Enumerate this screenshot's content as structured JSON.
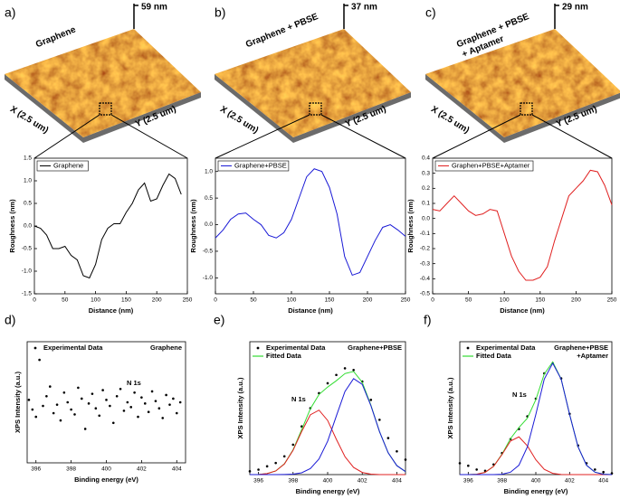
{
  "afm_panels": [
    {
      "panel": "a)",
      "height": "59 nm",
      "title": [
        "Graphene"
      ],
      "x_label": "X (2.5 um)",
      "y_label": "Y (2.5 um)"
    },
    {
      "panel": "b)",
      "height": "37 nm",
      "title": [
        "Graphene + PBSE"
      ],
      "x_label": "X (2.5 um)",
      "y_label": "Y (2.5 um)"
    },
    {
      "panel": "c)",
      "height": "29 nm",
      "title": [
        "Graphene + PBSE",
        "+ Aptamer"
      ],
      "x_label": "X (2.5 um)",
      "y_label": "Y (2.5 um)"
    }
  ],
  "chart_data": [
    {
      "type": "line",
      "x_label": "Distance (nm)",
      "y_label": "Roughness (nm)",
      "x": [
        0,
        10,
        20,
        30,
        40,
        50,
        60,
        70,
        80,
        90,
        100,
        110,
        120,
        130,
        140,
        150,
        160,
        170,
        180,
        190,
        200,
        210,
        220,
        230,
        240
      ],
      "series": [
        {
          "name": "Graphene",
          "color": "#000000",
          "values": [
            0.0,
            -0.05,
            -0.2,
            -0.5,
            -0.5,
            -0.45,
            -0.65,
            -0.75,
            -1.1,
            -1.15,
            -0.85,
            -0.3,
            -0.05,
            0.05,
            0.05,
            0.3,
            0.5,
            0.8,
            0.95,
            0.55,
            0.6,
            0.9,
            1.15,
            1.05,
            0.7
          ]
        }
      ],
      "xlim": [
        0,
        250
      ],
      "xticks": [
        0,
        50,
        100,
        150,
        200,
        250
      ],
      "ylim": [
        -1.5,
        1.5
      ],
      "yticks": [
        -1.5,
        {
          "value": -1,
          "label": "-1.0"
        },
        -0.5,
        {
          "value": 0,
          "label": "0.0"
        },
        0.5,
        {
          "value": 1,
          "label": "1.0"
        },
        1.5
      ]
    },
    {
      "type": "line",
      "x_label": "Distance (nm)",
      "y_label": "Roughness (nm)",
      "x": [
        0,
        10,
        20,
        30,
        40,
        50,
        60,
        70,
        80,
        90,
        100,
        110,
        120,
        130,
        140,
        150,
        160,
        170,
        180,
        190,
        200,
        210,
        220,
        230,
        240,
        250
      ],
      "series": [
        {
          "name": "Graphene+PBSE",
          "color": "#1a1ad6",
          "values": [
            -0.25,
            -0.1,
            0.1,
            0.2,
            0.22,
            0.1,
            0.0,
            -0.2,
            -0.25,
            -0.15,
            0.1,
            0.5,
            0.9,
            1.05,
            1.0,
            0.7,
            0.2,
            -0.6,
            -0.95,
            -0.9,
            -0.6,
            -0.3,
            -0.05,
            0.0,
            -0.1,
            -0.22
          ]
        }
      ],
      "xlim": [
        0,
        250
      ],
      "xticks": [
        0,
        50,
        100,
        150,
        200,
        250
      ],
      "ylim": [
        -1.3,
        1.25
      ],
      "yticks": [
        {
          "value": -1,
          "label": "-1.0"
        },
        -0.5,
        {
          "value": 0,
          "label": "0.0"
        },
        0.5,
        {
          "value": 1,
          "label": "1.0"
        }
      ]
    },
    {
      "type": "line",
      "x_label": "Distance (nm)",
      "y_label": "Roughness (nm)",
      "x": [
        0,
        10,
        20,
        30,
        40,
        50,
        60,
        70,
        80,
        90,
        100,
        110,
        120,
        130,
        140,
        150,
        160,
        170,
        180,
        190,
        200,
        210,
        220,
        230,
        240,
        250
      ],
      "series": [
        {
          "name": "Graphen+PBSE+Aptamer",
          "color": "#e02020",
          "values": [
            0.06,
            0.05,
            0.1,
            0.15,
            0.1,
            0.05,
            0.02,
            0.03,
            0.06,
            0.05,
            -0.1,
            -0.25,
            -0.35,
            -0.41,
            -0.41,
            -0.39,
            -0.32,
            -0.15,
            0.0,
            0.15,
            0.2,
            0.25,
            0.32,
            0.31,
            0.22,
            0.09
          ]
        }
      ],
      "xlim": [
        0,
        250
      ],
      "xticks": [
        0,
        50,
        100,
        150,
        200,
        250
      ],
      "ylim": [
        -0.5,
        0.4
      ],
      "yticks": [
        -0.5,
        -0.4,
        -0.3,
        -0.2,
        -0.1,
        {
          "value": 0,
          "label": "0.0"
        },
        0.1,
        0.2,
        0.3,
        0.4
      ]
    },
    {
      "type": "scatter",
      "panel": "d)",
      "x_label": "Binding energy (eV)",
      "y_label": "XPS Intensity (a.u.)",
      "label_lines": [
        "Graphene"
      ],
      "peak_label": "N 1s",
      "x": [
        395.6,
        395.8,
        396.0,
        396.2,
        396.4,
        396.6,
        396.8,
        397.0,
        397.2,
        397.4,
        397.6,
        397.8,
        398.0,
        398.2,
        398.4,
        398.6,
        398.8,
        399.0,
        399.2,
        399.4,
        399.6,
        399.8,
        400.0,
        400.2,
        400.4,
        400.6,
        400.8,
        401.0,
        401.2,
        401.4,
        401.6,
        401.8,
        402.0,
        402.2,
        402.4,
        402.6,
        402.8,
        403.0,
        403.2,
        403.4,
        403.6,
        403.8,
        404.0,
        404.2
      ],
      "series": [
        {
          "name": "Experimental Data",
          "color": "#000000",
          "mode": "markers",
          "values": [
            52,
            44,
            38,
            85,
            47,
            55,
            63,
            41,
            48,
            35,
            58,
            50,
            44,
            40,
            62,
            53,
            28,
            49,
            57,
            45,
            39,
            60,
            52,
            47,
            33,
            55,
            61,
            43,
            50,
            46,
            58,
            38,
            54,
            49,
            42,
            59,
            51,
            45,
            37,
            56,
            48,
            53,
            41,
            50
          ]
        }
      ],
      "xlim": [
        395.5,
        404.5
      ],
      "xticks": [
        396,
        398,
        400,
        402,
        404
      ],
      "ylim": [
        0,
        100
      ]
    },
    {
      "type": "line",
      "panel": "e)",
      "x_label": "Binding energy (eV)",
      "y_label": "XPS Intensity (a.u.)",
      "label_lines": [
        "Graphene+PBSE"
      ],
      "peak_label": "N 1s",
      "x": [
        395.5,
        396,
        396.5,
        397,
        397.5,
        398,
        398.5,
        399,
        399.5,
        400,
        400.5,
        401,
        401.5,
        402,
        402.5,
        403,
        403.5,
        404,
        404.5
      ],
      "series": [
        {
          "name": "Experimental Data",
          "color": "#000000",
          "mode": "markers",
          "values": [
            2,
            3,
            5,
            7,
            11,
            18,
            29,
            40,
            49,
            55,
            60,
            64,
            63,
            56,
            45,
            33,
            22,
            14,
            9
          ]
        },
        {
          "name": "Fitted Data",
          "color": "#33dd33",
          "mode": "lines",
          "values": [
            0,
            0.1,
            0.6,
            2.2,
            6.5,
            14.9,
            27.1,
            39.6,
            48.2,
            52.7,
            56.5,
            60.8,
            62.1,
            55.6,
            41.8,
            25.8,
            13.1,
            5.4,
            1.8
          ]
        },
        {
          "color": "#e02020",
          "mode": "lines",
          "values": [
            0,
            0.1,
            0.6,
            2.2,
            6.4,
            14.6,
            26,
            36,
            38.8,
            32.6,
            21.3,
            10.8,
            4.3,
            1.3,
            0.3,
            0,
            0,
            0,
            0
          ]
        },
        {
          "color": "#1a1ad6",
          "mode": "lines",
          "values": [
            0,
            0,
            0,
            0,
            0.1,
            0.3,
            1.1,
            3.6,
            9.4,
            20.1,
            35.2,
            50,
            57.8,
            54.3,
            41.5,
            25.8,
            13.1,
            5.4,
            1.8
          ]
        }
      ],
      "xlim": [
        395.5,
        404.5
      ],
      "xticks": [
        396,
        398,
        400,
        402,
        404
      ],
      "ylim": [
        0,
        80
      ]
    },
    {
      "type": "line",
      "panel": "f)",
      "x_label": "Binding energy (eV)",
      "y_label": "XPS Intensity (a.u.)",
      "label_lines": [
        "Graphene+PBSE",
        "+Aptamer"
      ],
      "peak_label": "N 1s",
      "x": [
        395.5,
        396,
        396.5,
        397,
        397.5,
        398,
        398.5,
        399,
        399.5,
        400,
        400.5,
        401,
        401.5,
        402,
        402.5,
        403,
        403.5,
        404,
        404.5
      ],
      "series": [
        {
          "name": "Experimental Data",
          "color": "#000000",
          "mode": "markers",
          "values": [
            9,
            7,
            4,
            3,
            8,
            17,
            28,
            36,
            46,
            60,
            80,
            88,
            76,
            48,
            23,
            9,
            4,
            2,
            1
          ]
        },
        {
          "name": "Fitted Data",
          "color": "#33dd33",
          "mode": "lines",
          "values": [
            0,
            0,
            0.3,
            1.8,
            6.5,
            16.2,
            28.4,
            37.2,
            44.6,
            59.2,
            79.5,
            89,
            75.5,
            47.5,
            21.9,
            7.4,
            1.9,
            0.3,
            0
          ]
        },
        {
          "color": "#e02020",
          "mode": "lines",
          "values": [
            0,
            0,
            0.3,
            1.8,
            6.5,
            15.9,
            26.5,
            29.8,
            22.7,
            11.7,
            4.1,
            1,
            0.1,
            0,
            0,
            0,
            0,
            0,
            0
          ]
        },
        {
          "color": "#1a1ad6",
          "mode": "lines",
          "values": [
            0,
            0,
            0,
            0,
            0,
            0.3,
            1.9,
            7.4,
            21.9,
            47.5,
            75.4,
            88,
            75.4,
            47.5,
            21.9,
            7.4,
            1.9,
            0.3,
            0
          ]
        }
      ],
      "xlim": [
        395.5,
        404.5
      ],
      "xticks": [
        396,
        398,
        400,
        402,
        404
      ],
      "ylim": [
        0,
        105
      ]
    }
  ]
}
